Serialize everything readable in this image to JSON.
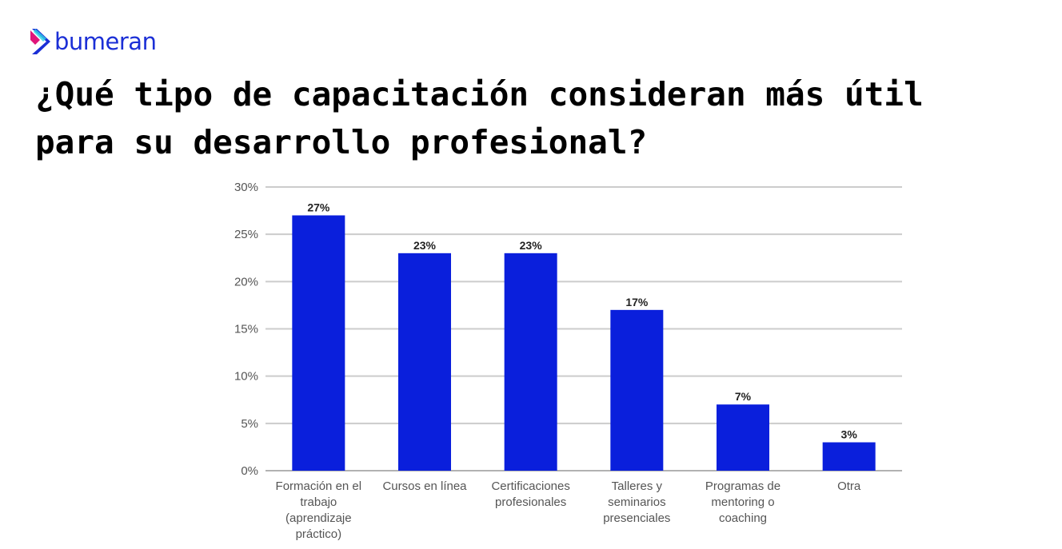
{
  "brand": {
    "name": "bumeran",
    "colors": {
      "primary": "#1b2fd6",
      "accent_pink": "#e0157a",
      "accent_cyan": "#2ed3e6"
    }
  },
  "title": "¿Qué tipo de capacitación consideran más útil para su desarrollo profesional?",
  "chart_data": {
    "type": "bar",
    "categories": [
      [
        "Formación en el",
        "trabajo",
        "(aprendizaje",
        "práctico)"
      ],
      [
        "Cursos en línea"
      ],
      [
        "Certificaciones",
        "profesionales"
      ],
      [
        "Talleres y",
        "seminarios",
        "presenciales"
      ],
      [
        "Programas de",
        "mentoring o",
        "coaching"
      ],
      [
        "Otra"
      ]
    ],
    "values": [
      27,
      23,
      23,
      17,
      7,
      3
    ],
    "data_labels": [
      "27%",
      "23%",
      "23%",
      "17%",
      "7%",
      "3%"
    ],
    "ylim": [
      0,
      30
    ],
    "yticks": [
      0,
      5,
      10,
      15,
      20,
      25,
      30
    ],
    "ytick_labels": [
      "0%",
      "5%",
      "10%",
      "15%",
      "20%",
      "25%",
      "30%"
    ],
    "grid": true,
    "bar_color": "#0a1fdc"
  }
}
